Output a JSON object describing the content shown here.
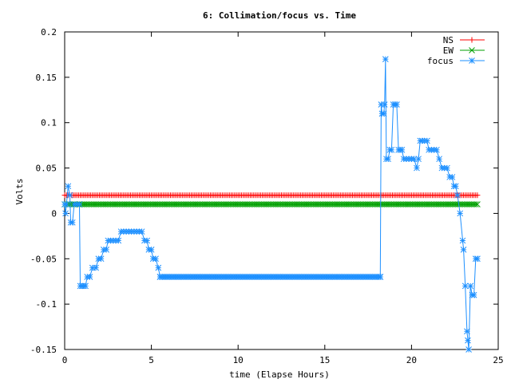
{
  "chart_data": {
    "type": "line",
    "title": "6: Collimation/focus vs. Time",
    "xlabel": "time (Elapse Hours)",
    "ylabel": "Volts",
    "xlim": [
      0,
      25
    ],
    "ylim": [
      -0.15,
      0.2
    ],
    "x_ticks": [
      0,
      5,
      10,
      15,
      20,
      25
    ],
    "y_ticks": [
      -0.15,
      -0.1,
      -0.05,
      0,
      0.05,
      0.1,
      0.15,
      0.2
    ],
    "x_tick_labels": [
      "0",
      "5",
      "10",
      "15",
      "20",
      "25"
    ],
    "y_tick_labels": [
      "-0.15",
      "-0.1",
      "-0.05",
      "0",
      "0.05",
      "0.1",
      "0.15",
      "0.2"
    ],
    "grid": false,
    "legend_position": "top-right",
    "series": [
      {
        "name": "NS",
        "color": "#ff0000",
        "marker": "plus",
        "line": [
          [
            0,
            0.02
          ],
          [
            23.8,
            0.02
          ]
        ],
        "marker_spacing": 0.1
      },
      {
        "name": "EW",
        "color": "#00a000",
        "marker": "cross",
        "line": [
          [
            0,
            0.01
          ],
          [
            23.8,
            0.01
          ]
        ],
        "marker_spacing": 0.1
      },
      {
        "name": "focus",
        "color": "#1e90ff",
        "marker": "star",
        "points": [
          [
            0.0,
            0.01
          ],
          [
            0.05,
            0.0
          ],
          [
            0.1,
            0.01
          ],
          [
            0.2,
            0.03
          ],
          [
            0.3,
            0.02
          ],
          [
            0.35,
            -0.01
          ],
          [
            0.45,
            -0.01
          ],
          [
            0.55,
            0.01
          ],
          [
            0.7,
            0.01
          ],
          [
            0.85,
            0.01
          ],
          [
            0.9,
            -0.08
          ],
          [
            1.0,
            -0.08
          ],
          [
            1.1,
            -0.08
          ],
          [
            1.2,
            -0.08
          ],
          [
            1.3,
            -0.07
          ],
          [
            1.45,
            -0.07
          ],
          [
            1.6,
            -0.06
          ],
          [
            1.8,
            -0.06
          ],
          [
            1.95,
            -0.05
          ],
          [
            2.1,
            -0.05
          ],
          [
            2.25,
            -0.04
          ],
          [
            2.4,
            -0.04
          ],
          [
            2.5,
            -0.03
          ],
          [
            2.65,
            -0.03
          ],
          [
            2.8,
            -0.03
          ],
          [
            2.95,
            -0.03
          ],
          [
            3.1,
            -0.03
          ],
          [
            3.25,
            -0.02
          ],
          [
            3.4,
            -0.02
          ],
          [
            3.55,
            -0.02
          ],
          [
            3.7,
            -0.02
          ],
          [
            3.85,
            -0.02
          ],
          [
            4.0,
            -0.02
          ],
          [
            4.15,
            -0.02
          ],
          [
            4.3,
            -0.02
          ],
          [
            4.45,
            -0.02
          ],
          [
            4.6,
            -0.03
          ],
          [
            4.75,
            -0.03
          ],
          [
            4.85,
            -0.04
          ],
          [
            5.0,
            -0.04
          ],
          [
            5.1,
            -0.05
          ],
          [
            5.25,
            -0.05
          ],
          [
            5.4,
            -0.06
          ],
          [
            5.5,
            -0.07
          ],
          [
            6.0,
            -0.07
          ],
          [
            7.0,
            -0.07
          ],
          [
            8.0,
            -0.07
          ],
          [
            9.0,
            -0.07
          ],
          [
            10.0,
            -0.07
          ],
          [
            11.0,
            -0.07
          ],
          [
            12.0,
            -0.07
          ],
          [
            13.0,
            -0.07
          ],
          [
            14.0,
            -0.07
          ],
          [
            15.0,
            -0.07
          ],
          [
            16.0,
            -0.07
          ],
          [
            17.0,
            -0.07
          ],
          [
            18.0,
            -0.07
          ],
          [
            18.2,
            -0.07
          ],
          [
            18.25,
            0.12
          ],
          [
            18.3,
            0.11
          ],
          [
            18.4,
            0.11
          ],
          [
            18.45,
            0.12
          ],
          [
            18.5,
            0.17
          ],
          [
            18.55,
            0.06
          ],
          [
            18.65,
            0.06
          ],
          [
            18.75,
            0.07
          ],
          [
            18.85,
            0.07
          ],
          [
            18.95,
            0.12
          ],
          [
            19.05,
            0.12
          ],
          [
            19.15,
            0.12
          ],
          [
            19.25,
            0.07
          ],
          [
            19.35,
            0.07
          ],
          [
            19.45,
            0.07
          ],
          [
            19.55,
            0.06
          ],
          [
            19.7,
            0.06
          ],
          [
            19.85,
            0.06
          ],
          [
            20.0,
            0.06
          ],
          [
            20.15,
            0.06
          ],
          [
            20.3,
            0.05
          ],
          [
            20.4,
            0.06
          ],
          [
            20.5,
            0.08
          ],
          [
            20.6,
            0.08
          ],
          [
            20.75,
            0.08
          ],
          [
            20.9,
            0.08
          ],
          [
            21.0,
            0.07
          ],
          [
            21.15,
            0.07
          ],
          [
            21.3,
            0.07
          ],
          [
            21.45,
            0.07
          ],
          [
            21.6,
            0.06
          ],
          [
            21.75,
            0.05
          ],
          [
            21.9,
            0.05
          ],
          [
            22.05,
            0.05
          ],
          [
            22.2,
            0.04
          ],
          [
            22.35,
            0.04
          ],
          [
            22.45,
            0.03
          ],
          [
            22.55,
            0.03
          ],
          [
            22.65,
            0.02
          ],
          [
            22.8,
            0.0
          ],
          [
            22.95,
            -0.03
          ],
          [
            23.0,
            -0.04
          ],
          [
            23.1,
            -0.08
          ],
          [
            23.2,
            -0.13
          ],
          [
            23.25,
            -0.14
          ],
          [
            23.3,
            -0.15
          ],
          [
            23.4,
            -0.08
          ],
          [
            23.5,
            -0.09
          ],
          [
            23.6,
            -0.09
          ],
          [
            23.7,
            -0.05
          ],
          [
            23.8,
            -0.05
          ]
        ]
      }
    ]
  }
}
